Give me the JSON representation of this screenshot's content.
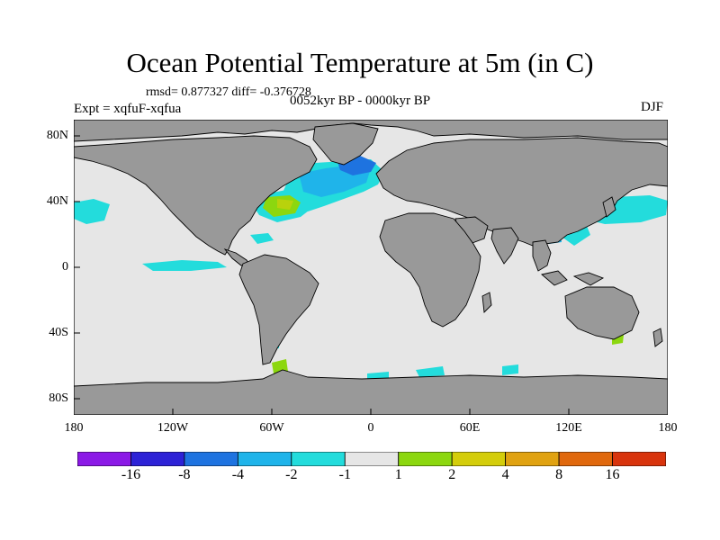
{
  "title": "Ocean Potential Temperature at 5m (in C)",
  "stats_label": "rmsd= 0.877327  diff= -0.376728",
  "experiment_label": "Expt = xqfuF-xqfua",
  "period_label": "0052kyr BP - 0000kyr BP",
  "season_label": "DJF",
  "lat_ticks": [
    "80N",
    "40N",
    "0",
    "40S",
    "80S"
  ],
  "lon_ticks": [
    "180",
    "120W",
    "60W",
    "0",
    "60E",
    "120E",
    "180"
  ],
  "colorbar": {
    "colors": [
      "#8b19e6",
      "#2d22d6",
      "#1e73e0",
      "#1fb4ea",
      "#23dcdc",
      "#e6e6e6",
      "#8cd70f",
      "#d4cd0a",
      "#e0a211",
      "#e0680d",
      "#d8340d"
    ],
    "labels": [
      "-16",
      "-8",
      "-4",
      "-2",
      "-1",
      "1",
      "2",
      "4",
      "8",
      "16"
    ]
  },
  "colors": {
    "land": "#999999",
    "neutral": "#e6e6e6",
    "cyan": "#23dcdc",
    "light_blue": "#1fb4ea",
    "blue": "#1e73e0",
    "green": "#8cd70f",
    "yellow_green": "#b9d20c"
  }
}
